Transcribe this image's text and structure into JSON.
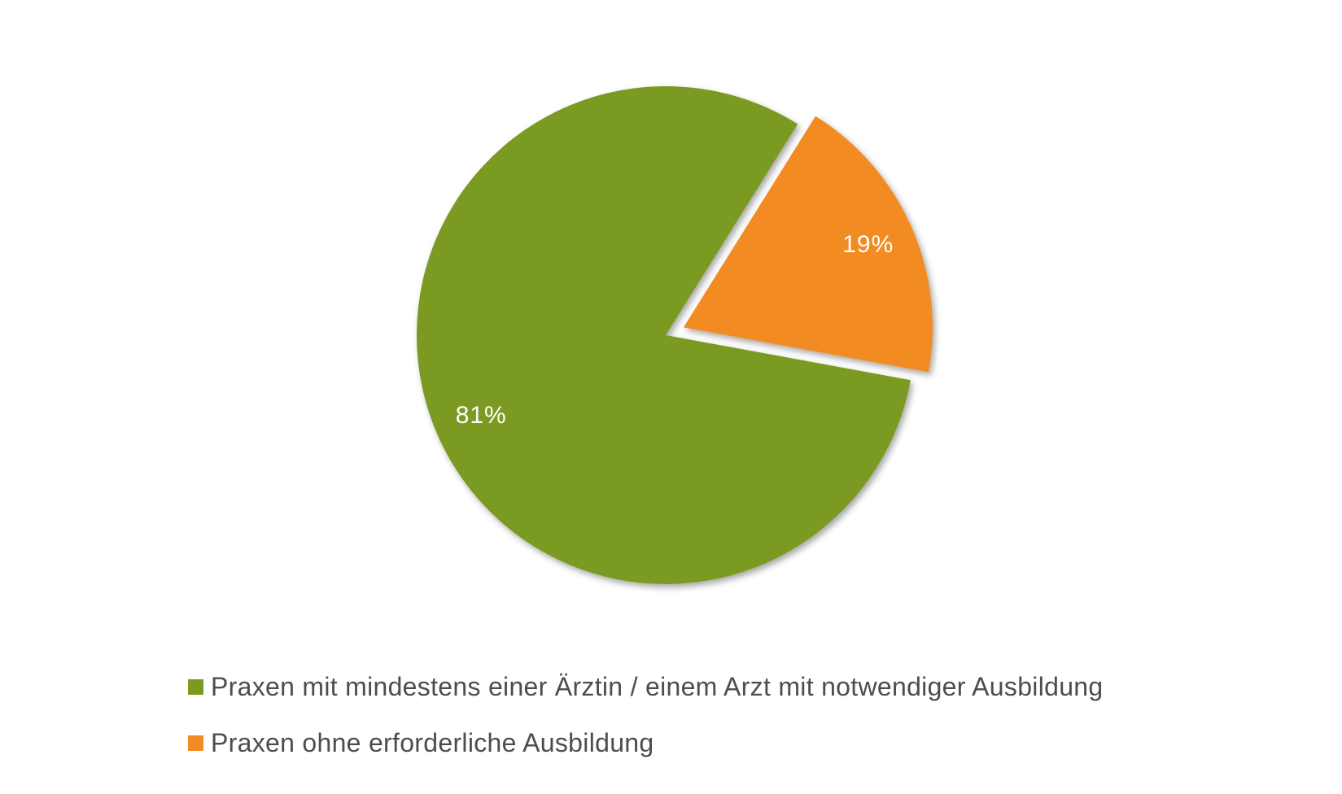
{
  "chart_data": {
    "type": "pie",
    "title": "",
    "slices": [
      {
        "name": "Praxen mit mindestens einer Ärztin / einem Arzt mit notwendiger Ausbildung",
        "value": 81,
        "label": "81%",
        "color": "#7a9a21",
        "exploded": false
      },
      {
        "name": "Praxen ohne erforderliche Ausbildung",
        "value": 19,
        "label": "19%",
        "color": "#f28b22",
        "exploded": true
      }
    ],
    "legend_placement": "bottom-left"
  }
}
